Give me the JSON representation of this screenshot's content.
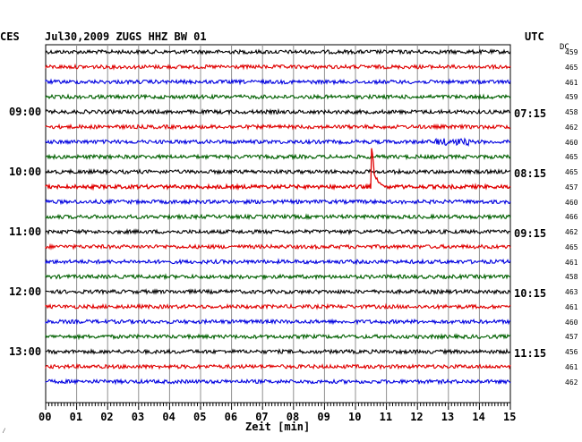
{
  "header": {
    "title": "Jul30,2009   ZUGS HHZ BW 01",
    "left_zone": "CES",
    "right_zone": "UTC",
    "dc_label": "DC"
  },
  "left_time_labels": [
    "09:00",
    "10:00",
    "11:00",
    "12:00",
    "13:00"
  ],
  "right_time_labels": [
    "07:15",
    "08:15",
    "09:15",
    "10:15",
    "11:15"
  ],
  "dc_values": [
    "459",
    "465",
    "461",
    "459",
    "458",
    "462",
    "460",
    "465",
    "465",
    "457",
    "460",
    "466",
    "462",
    "465",
    "461",
    "458",
    "463",
    "461",
    "460",
    "457",
    "456",
    "461",
    "462"
  ],
  "x_ticks": [
    "00",
    "01",
    "02",
    "03",
    "04",
    "05",
    "06",
    "07",
    "08",
    "09",
    "10",
    "11",
    "12",
    "13",
    "14",
    "15"
  ],
  "x_label": "Zeit [min]",
  "corner_mark": "⁄",
  "colors": {
    "trace_cycle": [
      "#000000",
      "#e00000",
      "#0000e0",
      "#006000"
    ],
    "grid": "#909090"
  },
  "chart_data": {
    "type": "line",
    "x_range_min": [
      0,
      15
    ],
    "traces": 23,
    "trace_interval_min": 15,
    "event": {
      "trace_index": 9,
      "x_min": 10.5,
      "description": ""
    }
  }
}
